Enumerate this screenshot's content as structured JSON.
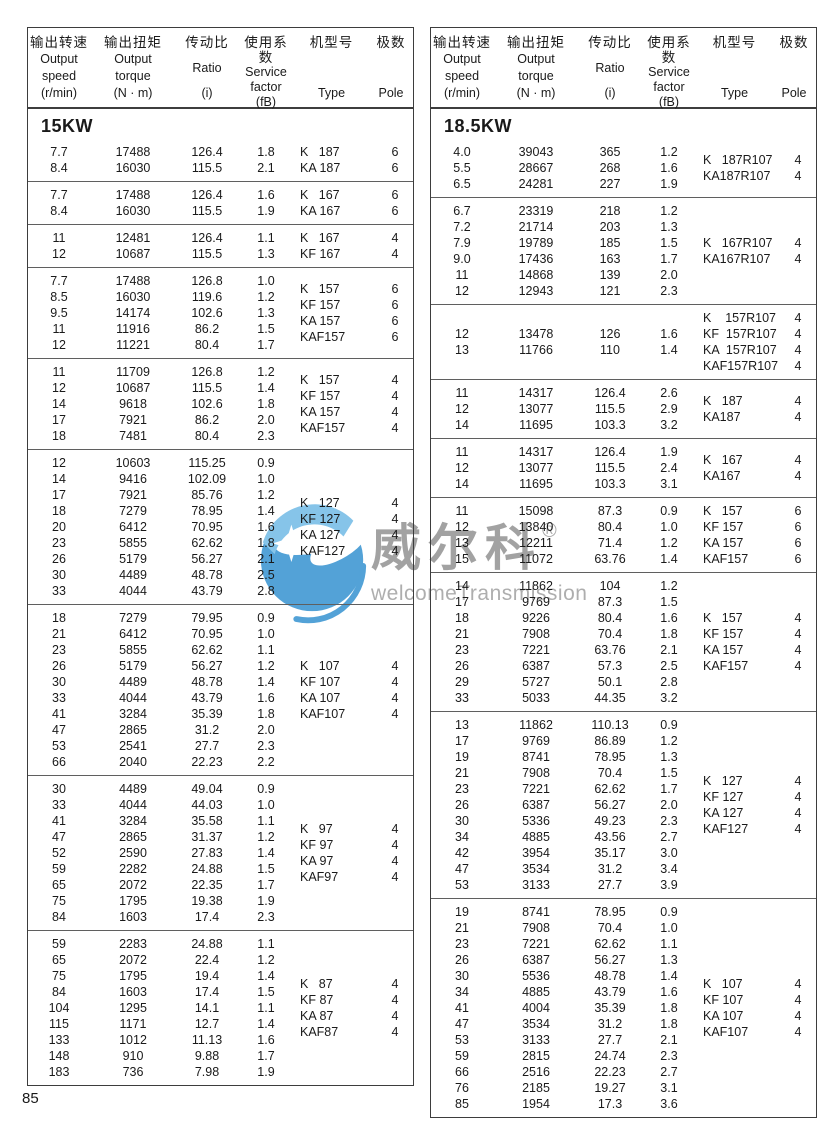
{
  "page": {
    "number": "85"
  },
  "watermark": {
    "brand_zh": "威尔科",
    "reg": "®",
    "brand_en": "welcomeTransmission",
    "logo_color": "#459bd4",
    "logo_light_color": "#7cc0e8",
    "text_color": "#929292"
  },
  "header": {
    "columns": [
      {
        "key": "speed",
        "lines": [
          "输出转速",
          "Output",
          "speed",
          "(r/min)"
        ]
      },
      {
        "key": "torque",
        "lines": [
          "输出扭矩",
          "Output",
          "torque",
          "(N · m)"
        ]
      },
      {
        "key": "ratio",
        "lines": [
          "传动比",
          "Ratio",
          "(i)"
        ]
      },
      {
        "key": "factor",
        "lines": [
          "使用系数",
          "Service",
          "factor",
          "(fB)"
        ]
      },
      {
        "key": "type",
        "lines": [
          "机型号",
          "Type"
        ]
      },
      {
        "key": "pole",
        "lines": [
          "极数",
          "Pole"
        ]
      }
    ]
  },
  "tables": [
    {
      "section": "15KW",
      "blocks": [
        {
          "rows": [
            [
              "7.7",
              "17488",
              "126.4",
              "1.8"
            ],
            [
              "8.4",
              "16030",
              "115.5",
              "2.1"
            ]
          ],
          "types": [
            {
              "label": "K   187",
              "pole": "6"
            },
            {
              "label": "KA 187",
              "pole": "6"
            }
          ]
        },
        {
          "rows": [
            [
              "7.7",
              "17488",
              "126.4",
              "1.6"
            ],
            [
              "8.4",
              "16030",
              "115.5",
              "1.9"
            ]
          ],
          "types": [
            {
              "label": "K   167",
              "pole": "6"
            },
            {
              "label": "KA 167",
              "pole": "6"
            }
          ]
        },
        {
          "rows": [
            [
              "11",
              "12481",
              "126.4",
              "1.1"
            ],
            [
              "12",
              "10687",
              "115.5",
              "1.3"
            ]
          ],
          "types": [
            {
              "label": "K   167",
              "pole": "4"
            },
            {
              "label": "KF 167",
              "pole": "4"
            }
          ]
        },
        {
          "rows": [
            [
              "7.7",
              "17488",
              "126.8",
              "1.0"
            ],
            [
              "8.5",
              "16030",
              "119.6",
              "1.2"
            ],
            [
              "9.5",
              "14174",
              "102.6",
              "1.3"
            ],
            [
              "11",
              "11916",
              "86.2",
              "1.5"
            ],
            [
              "12",
              "11221",
              "80.4",
              "1.7"
            ]
          ],
          "types": [
            {
              "label": "K   157",
              "pole": "6"
            },
            {
              "label": "KF 157",
              "pole": "6"
            },
            {
              "label": "KA 157",
              "pole": "6"
            },
            {
              "label": "KAF157",
              "pole": "6"
            }
          ]
        },
        {
          "rows": [
            [
              "11",
              "11709",
              "126.8",
              "1.2"
            ],
            [
              "12",
              "10687",
              "115.5",
              "1.4"
            ],
            [
              "14",
              "9618",
              "102.6",
              "1.8"
            ],
            [
              "17",
              "7921",
              "86.2",
              "2.0"
            ],
            [
              "18",
              "7481",
              "80.4",
              "2.3"
            ]
          ],
          "types": [
            {
              "label": "K   157",
              "pole": "4"
            },
            {
              "label": "KF 157",
              "pole": "4"
            },
            {
              "label": "KA 157",
              "pole": "4"
            },
            {
              "label": "KAF157",
              "pole": "4"
            }
          ]
        },
        {
          "rows": [
            [
              "12",
              "10603",
              "115.25",
              "0.9"
            ],
            [
              "14",
              "9416",
              "102.09",
              "1.0"
            ],
            [
              "17",
              "7921",
              "85.76",
              "1.2"
            ],
            [
              "18",
              "7279",
              "78.95",
              "1.4"
            ],
            [
              "20",
              "6412",
              "70.95",
              "1.6"
            ],
            [
              "23",
              "5855",
              "62.62",
              "1.8"
            ],
            [
              "26",
              "5179",
              "56.27",
              "2.1"
            ],
            [
              "30",
              "4489",
              "48.78",
              "2.5"
            ],
            [
              "33",
              "4044",
              "43.79",
              "2.8"
            ]
          ],
          "types": [
            {
              "label": "K   127",
              "pole": "4"
            },
            {
              "label": "KF 127",
              "pole": "4"
            },
            {
              "label": "KA 127",
              "pole": "4"
            },
            {
              "label": "KAF127",
              "pole": "4"
            }
          ]
        },
        {
          "rows": [
            [
              "18",
              "7279",
              "79.95",
              "0.9"
            ],
            [
              "21",
              "6412",
              "70.95",
              "1.0"
            ],
            [
              "23",
              "5855",
              "62.62",
              "1.1"
            ],
            [
              "26",
              "5179",
              "56.27",
              "1.2"
            ],
            [
              "30",
              "4489",
              "48.78",
              "1.4"
            ],
            [
              "33",
              "4044",
              "43.79",
              "1.6"
            ],
            [
              "41",
              "3284",
              "35.39",
              "1.8"
            ],
            [
              "47",
              "2865",
              "31.2",
              "2.0"
            ],
            [
              "53",
              "2541",
              "27.7",
              "2.3"
            ],
            [
              "66",
              "2040",
              "22.23",
              "2.2"
            ]
          ],
          "types": [
            {
              "label": "K   107",
              "pole": "4"
            },
            {
              "label": "KF 107",
              "pole": "4"
            },
            {
              "label": "KA 107",
              "pole": "4"
            },
            {
              "label": "KAF107",
              "pole": "4"
            }
          ]
        },
        {
          "rows": [
            [
              "30",
              "4489",
              "49.04",
              "0.9"
            ],
            [
              "33",
              "4044",
              "44.03",
              "1.0"
            ],
            [
              "41",
              "3284",
              "35.58",
              "1.1"
            ],
            [
              "47",
              "2865",
              "31.37",
              "1.2"
            ],
            [
              "52",
              "2590",
              "27.83",
              "1.4"
            ],
            [
              "59",
              "2282",
              "24.88",
              "1.5"
            ],
            [
              "65",
              "2072",
              "22.35",
              "1.7"
            ],
            [
              "75",
              "1795",
              "19.38",
              "1.9"
            ],
            [
              "84",
              "1603",
              "17.4",
              "2.3"
            ]
          ],
          "types": [
            {
              "label": "K   97",
              "pole": "4"
            },
            {
              "label": "KF 97",
              "pole": "4"
            },
            {
              "label": "KA 97",
              "pole": "4"
            },
            {
              "label": "KAF97",
              "pole": "4"
            }
          ]
        },
        {
          "rows": [
            [
              "59",
              "2283",
              "24.88",
              "1.1"
            ],
            [
              "65",
              "2072",
              "22.4",
              "1.2"
            ],
            [
              "75",
              "1795",
              "19.4",
              "1.4"
            ],
            [
              "84",
              "1603",
              "17.4",
              "1.5"
            ],
            [
              "104",
              "1295",
              "14.1",
              "1.1"
            ],
            [
              "115",
              "1171",
              "12.7",
              "1.4"
            ],
            [
              "133",
              "1012",
              "11.13",
              "1.6"
            ],
            [
              "148",
              "910",
              "9.88",
              "1.7"
            ],
            [
              "183",
              "736",
              "7.98",
              "1.9"
            ]
          ],
          "types": [
            {
              "label": "K   87",
              "pole": "4"
            },
            {
              "label": "KF 87",
              "pole": "4"
            },
            {
              "label": "KA 87",
              "pole": "4"
            },
            {
              "label": "KAF87",
              "pole": "4"
            }
          ]
        }
      ]
    },
    {
      "section": "18.5KW",
      "blocks": [
        {
          "rows": [
            [
              "4.0",
              "39043",
              "365",
              "1.2"
            ],
            [
              "5.5",
              "28667",
              "268",
              "1.6"
            ],
            [
              "6.5",
              "24281",
              "227",
              "1.9"
            ]
          ],
          "types": [
            {
              "label": "K   187R107",
              "pole": "4"
            },
            {
              "label": "KA187R107",
              "pole": "4"
            }
          ]
        },
        {
          "rows": [
            [
              "6.7",
              "23319",
              "218",
              "1.2"
            ],
            [
              "7.2",
              "21714",
              "203",
              "1.3"
            ],
            [
              "7.9",
              "19789",
              "185",
              "1.5"
            ],
            [
              "9.0",
              "17436",
              "163",
              "1.7"
            ],
            [
              "11",
              "14868",
              "139",
              "2.0"
            ],
            [
              "12",
              "12943",
              "121",
              "2.3"
            ]
          ],
          "types": [
            {
              "label": "K   167R107",
              "pole": "4"
            },
            {
              "label": "KA167R107",
              "pole": "4"
            }
          ]
        },
        {
          "rows": [
            [
              "12",
              "13478",
              "126",
              "1.6"
            ],
            [
              "13",
              "11766",
              "110",
              "1.4"
            ]
          ],
          "types": [
            {
              "label": "K    157R107",
              "pole": "4"
            },
            {
              "label": "KF  157R107",
              "pole": "4"
            },
            {
              "label": "KA  157R107",
              "pole": "4"
            },
            {
              "label": "KAF157R107",
              "pole": "4"
            }
          ]
        },
        {
          "rows": [
            [
              "11",
              "14317",
              "126.4",
              "2.6"
            ],
            [
              "12",
              "13077",
              "115.5",
              "2.9"
            ],
            [
              "14",
              "11695",
              "103.3",
              "3.2"
            ]
          ],
          "types": [
            {
              "label": "K   187",
              "pole": "4"
            },
            {
              "label": "KA187",
              "pole": "4"
            }
          ]
        },
        {
          "rows": [
            [
              "11",
              "14317",
              "126.4",
              "1.9"
            ],
            [
              "12",
              "13077",
              "115.5",
              "2.4"
            ],
            [
              "14",
              "11695",
              "103.3",
              "3.1"
            ]
          ],
          "types": [
            {
              "label": "K   167",
              "pole": "4"
            },
            {
              "label": "KA167",
              "pole": "4"
            }
          ]
        },
        {
          "rows": [
            [
              "11",
              "15098",
              "87.3",
              "0.9"
            ],
            [
              "12",
              "13840",
              "80.4",
              "1.0"
            ],
            [
              "13",
              "12211",
              "71.4",
              "1.2"
            ],
            [
              "15",
              "11072",
              "63.76",
              "1.4"
            ]
          ],
          "types": [
            {
              "label": "K   157",
              "pole": "6"
            },
            {
              "label": "KF 157",
              "pole": "6"
            },
            {
              "label": "KA 157",
              "pole": "6"
            },
            {
              "label": "KAF157",
              "pole": "6"
            }
          ]
        },
        {
          "rows": [
            [
              "14",
              "11862",
              "104",
              "1.2"
            ],
            [
              "17",
              "9769",
              "87.3",
              "1.5"
            ],
            [
              "18",
              "9226",
              "80.4",
              "1.6"
            ],
            [
              "21",
              "7908",
              "70.4",
              "1.8"
            ],
            [
              "23",
              "7221",
              "63.76",
              "2.1"
            ],
            [
              "26",
              "6387",
              "57.3",
              "2.5"
            ],
            [
              "29",
              "5727",
              "50.1",
              "2.8"
            ],
            [
              "33",
              "5033",
              "44.35",
              "3.2"
            ]
          ],
          "types": [
            {
              "label": "K   157",
              "pole": "4"
            },
            {
              "label": "KF 157",
              "pole": "4"
            },
            {
              "label": "KA 157",
              "pole": "4"
            },
            {
              "label": "KAF157",
              "pole": "4"
            }
          ]
        },
        {
          "rows": [
            [
              "13",
              "11862",
              "110.13",
              "0.9"
            ],
            [
              "17",
              "9769",
              "86.89",
              "1.2"
            ],
            [
              "19",
              "8741",
              "78.95",
              "1.3"
            ],
            [
              "21",
              "7908",
              "70.4",
              "1.5"
            ],
            [
              "23",
              "7221",
              "62.62",
              "1.7"
            ],
            [
              "26",
              "6387",
              "56.27",
              "2.0"
            ],
            [
              "30",
              "5336",
              "49.23",
              "2.3"
            ],
            [
              "34",
              "4885",
              "43.56",
              "2.7"
            ],
            [
              "42",
              "3954",
              "35.17",
              "3.0"
            ],
            [
              "47",
              "3534",
              "31.2",
              "3.4"
            ],
            [
              "53",
              "3133",
              "27.7",
              "3.9"
            ]
          ],
          "types": [
            {
              "label": "K   127",
              "pole": "4"
            },
            {
              "label": "KF 127",
              "pole": "4"
            },
            {
              "label": "KA 127",
              "pole": "4"
            },
            {
              "label": "KAF127",
              "pole": "4"
            }
          ]
        },
        {
          "rows": [
            [
              "19",
              "8741",
              "78.95",
              "0.9"
            ],
            [
              "21",
              "7908",
              "70.4",
              "1.0"
            ],
            [
              "23",
              "7221",
              "62.62",
              "1.1"
            ],
            [
              "26",
              "6387",
              "56.27",
              "1.3"
            ],
            [
              "30",
              "5536",
              "48.78",
              "1.4"
            ],
            [
              "34",
              "4885",
              "43.79",
              "1.6"
            ],
            [
              "41",
              "4004",
              "35.39",
              "1.8"
            ],
            [
              "47",
              "3534",
              "31.2",
              "1.8"
            ],
            [
              "53",
              "3133",
              "27.7",
              "2.1"
            ],
            [
              "59",
              "2815",
              "24.74",
              "2.3"
            ],
            [
              "66",
              "2516",
              "22.23",
              "2.7"
            ],
            [
              "76",
              "2185",
              "19.27",
              "3.1"
            ],
            [
              "85",
              "1954",
              "17.3",
              "3.6"
            ]
          ],
          "types": [
            {
              "label": "K   107",
              "pole": "4"
            },
            {
              "label": "KF 107",
              "pole": "4"
            },
            {
              "label": "KA 107",
              "pole": "4"
            },
            {
              "label": "KAF107",
              "pole": "4"
            }
          ]
        }
      ]
    }
  ]
}
